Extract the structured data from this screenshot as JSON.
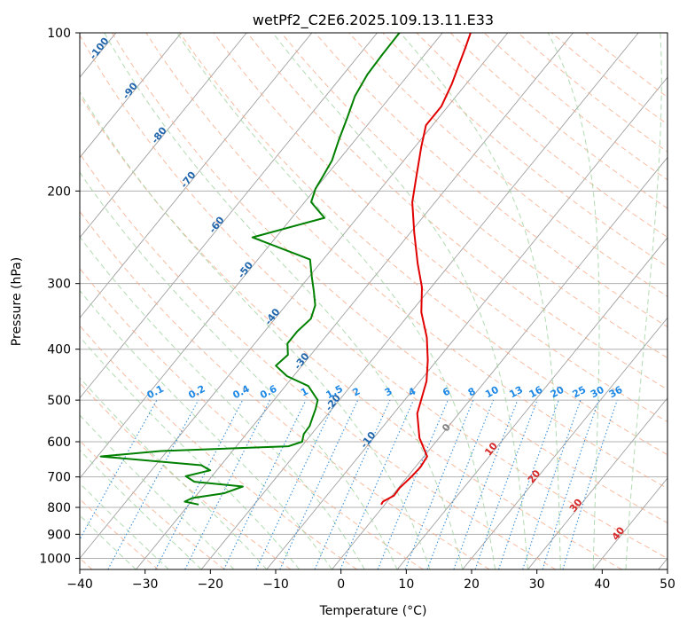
{
  "chart_data": {
    "type": "line",
    "subtype": "skew-t log-p diagram",
    "title": "wetPf2_C2E6.2025.109.13.11.E33",
    "xlabel": "Temperature (°C)",
    "ylabel": "Pressure (hPa)",
    "xlim": [
      -40,
      50
    ],
    "ylim": [
      1050,
      100
    ],
    "y_scale": "log",
    "x_ticks": [
      -40,
      -30,
      -20,
      -10,
      0,
      10,
      20,
      30,
      40,
      50
    ],
    "x_tick_labels": [
      "−40",
      "−30",
      "−20",
      "−10",
      "0",
      "10",
      "20",
      "30",
      "40",
      "50"
    ],
    "y_ticks": [
      100,
      200,
      300,
      400,
      500,
      600,
      700,
      800,
      900,
      1000
    ],
    "y_tick_labels": [
      "100",
      "200",
      "300",
      "400",
      "500",
      "600",
      "700",
      "800",
      "900",
      "1000"
    ],
    "grid": true,
    "colors": {
      "temperature": "#e00000",
      "dewpoint": "#008000",
      "isotherm": "#a0a0a0",
      "dry_adiabat": "#f4a582",
      "moist_adiabat": "#9fd29f",
      "mixing_ratio": "#3a8fd8",
      "isotherm_label": "#2166ac",
      "isotherm_label_warm": "#d62728",
      "zero_isotherm_label": "#808080",
      "mixing_label": "#1e88e5"
    },
    "series": [
      {
        "name": "",
        "role": "temperature",
        "color": "#e00000",
        "points": [
          [
            -0.55,
            790
          ],
          [
            -0.65,
            780
          ],
          [
            0.3,
            760
          ],
          [
            0.2,
            735
          ],
          [
            0.6,
            700
          ],
          [
            0.8,
            670
          ],
          [
            0.5,
            640
          ],
          [
            -3.0,
            590
          ],
          [
            -6.4,
            530
          ],
          [
            -9.0,
            460
          ],
          [
            -11.4,
            420
          ],
          [
            -14.4,
            380
          ],
          [
            -18.4,
            340
          ],
          [
            -21.4,
            305
          ],
          [
            -25.0,
            275
          ],
          [
            -29.4,
            240
          ],
          [
            -33.5,
            210
          ],
          [
            -35.8,
            190
          ],
          [
            -39.0,
            165
          ],
          [
            -41.0,
            150
          ],
          [
            -41.0,
            138
          ],
          [
            -42.2,
            125
          ],
          [
            -43.5,
            115
          ],
          [
            -44.6,
            107
          ],
          [
            -45.7,
            100
          ]
        ]
      },
      {
        "name": "",
        "role": "dewpoint",
        "color": "#008000",
        "points": [
          [
            -28.5,
            790
          ],
          [
            -31.0,
            780
          ],
          [
            -30.3,
            768
          ],
          [
            -26.0,
            752
          ],
          [
            -24.0,
            730
          ],
          [
            -32.0,
            715
          ],
          [
            -34.0,
            698
          ],
          [
            -31.0,
            680
          ],
          [
            -33.0,
            665
          ],
          [
            -49.5,
            640
          ],
          [
            -41.0,
            625
          ],
          [
            -22.0,
            612
          ],
          [
            -20.5,
            600
          ],
          [
            -21.2,
            580
          ],
          [
            -21.3,
            560
          ],
          [
            -21.9,
            540
          ],
          [
            -22.5,
            520
          ],
          [
            -23.3,
            500
          ],
          [
            -26.5,
            470
          ],
          [
            -31.0,
            450
          ],
          [
            -34.0,
            430
          ],
          [
            -33.5,
            410
          ],
          [
            -35.0,
            390
          ],
          [
            -35.0,
            370
          ],
          [
            -34.5,
            350
          ],
          [
            -35.5,
            330
          ],
          [
            -37.5,
            310
          ],
          [
            -39.5,
            292
          ],
          [
            -42.0,
            270
          ],
          [
            -53.6,
            245
          ],
          [
            -45.0,
            225
          ],
          [
            -49.0,
            210
          ],
          [
            -50.0,
            198
          ],
          [
            -50.4,
            188
          ],
          [
            -51.0,
            175
          ],
          [
            -52.5,
            160
          ],
          [
            -54.0,
            145
          ],
          [
            -55.5,
            132
          ],
          [
            -56.3,
            120
          ],
          [
            -56.5,
            110
          ],
          [
            -56.6,
            100
          ]
        ]
      }
    ],
    "isotherm_labels": {
      "cold": [
        "-100",
        "-90",
        "-80",
        "-70",
        "-60",
        "-50",
        "-40",
        "-30",
        "-20",
        "-10"
      ],
      "zero": "0",
      "warm": [
        "10",
        "20",
        "30",
        "40"
      ]
    },
    "mixing_ratio_labels": [
      "0.1",
      "0.2",
      "0.4",
      "0.6",
      "1",
      "1.5",
      "2",
      "3",
      "4",
      "6",
      "8",
      "10",
      "13",
      "16",
      "20",
      "25",
      "30",
      "36"
    ]
  }
}
